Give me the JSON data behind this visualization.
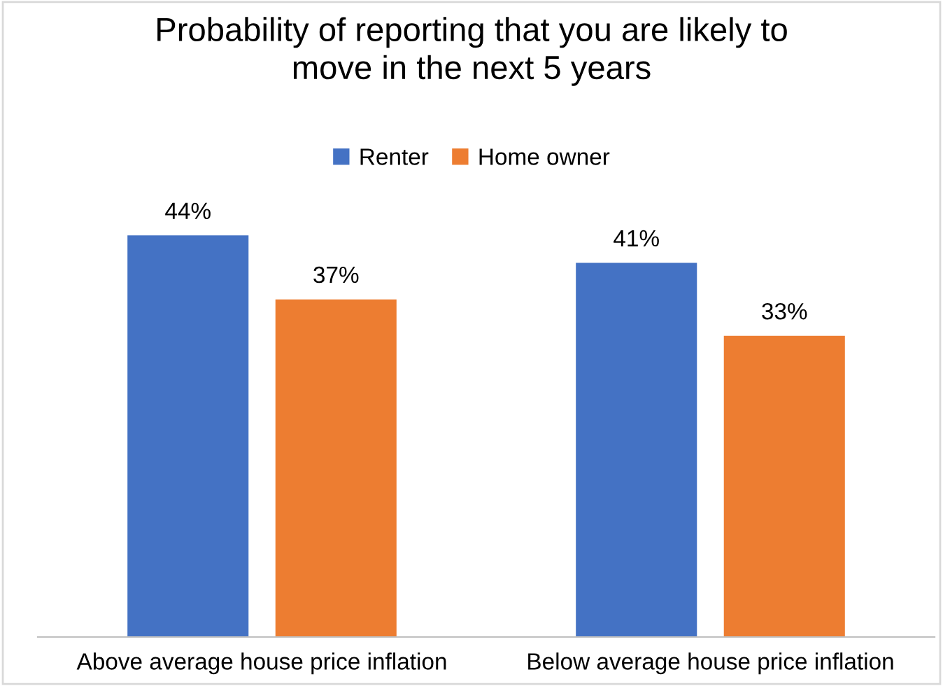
{
  "chart_data": {
    "type": "bar",
    "title": "Probability of reporting that you are likely to\nmove in the next 5 years",
    "categories": [
      "Above average house price inflation",
      "Below average house price inflation"
    ],
    "series": [
      {
        "name": "Renter",
        "color": "#4472c4",
        "values": [
          44,
          41
        ],
        "value_labels": [
          "44%",
          "41%"
        ]
      },
      {
        "name": "Home owner",
        "color": "#ed7d31",
        "values": [
          37,
          33
        ],
        "value_labels": [
          "37%",
          "33%"
        ]
      }
    ],
    "legend": "top"
  }
}
